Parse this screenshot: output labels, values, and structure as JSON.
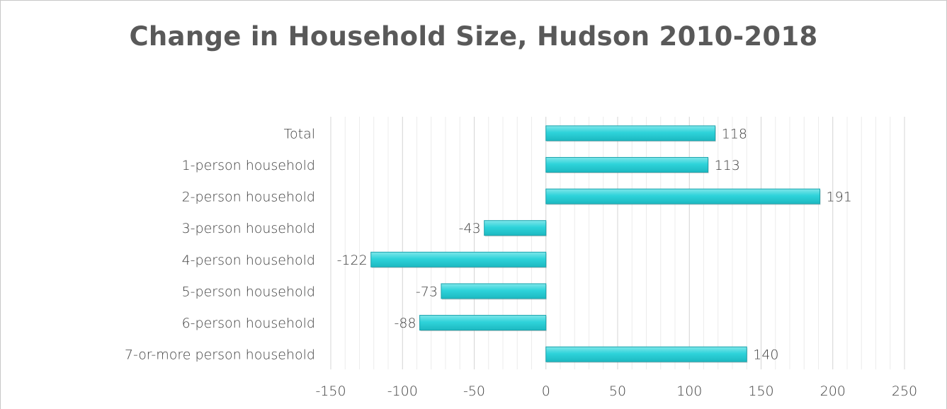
{
  "chart_data": {
    "type": "bar",
    "orientation": "horizontal",
    "title": "Change in Household Size, Hudson 2010-2018",
    "xlabel": "",
    "ylabel": "",
    "categories": [
      "Total",
      "1-person household",
      "2-person household",
      "3-person household",
      "4-person household",
      "5-person household",
      "6-person household",
      "7-or-more person household"
    ],
    "values": [
      118,
      113,
      191,
      -43,
      -122,
      -73,
      -88,
      140
    ],
    "data_labels": [
      "118",
      "113",
      "191",
      "-43",
      "-122",
      "-73",
      "-88",
      "140"
    ],
    "xlim": [
      -150,
      250
    ],
    "x_ticks": [
      -150,
      -100,
      -50,
      0,
      50,
      100,
      150,
      200,
      250
    ],
    "x_tick_labels": [
      "-150",
      "-100",
      "-50",
      "0",
      "50",
      "100",
      "150",
      "200",
      "250"
    ],
    "grid": "vertical major and minor",
    "legend": "none",
    "bar_color": "#2ECFD6",
    "bar_edge_color": "#1AA3AC"
  }
}
